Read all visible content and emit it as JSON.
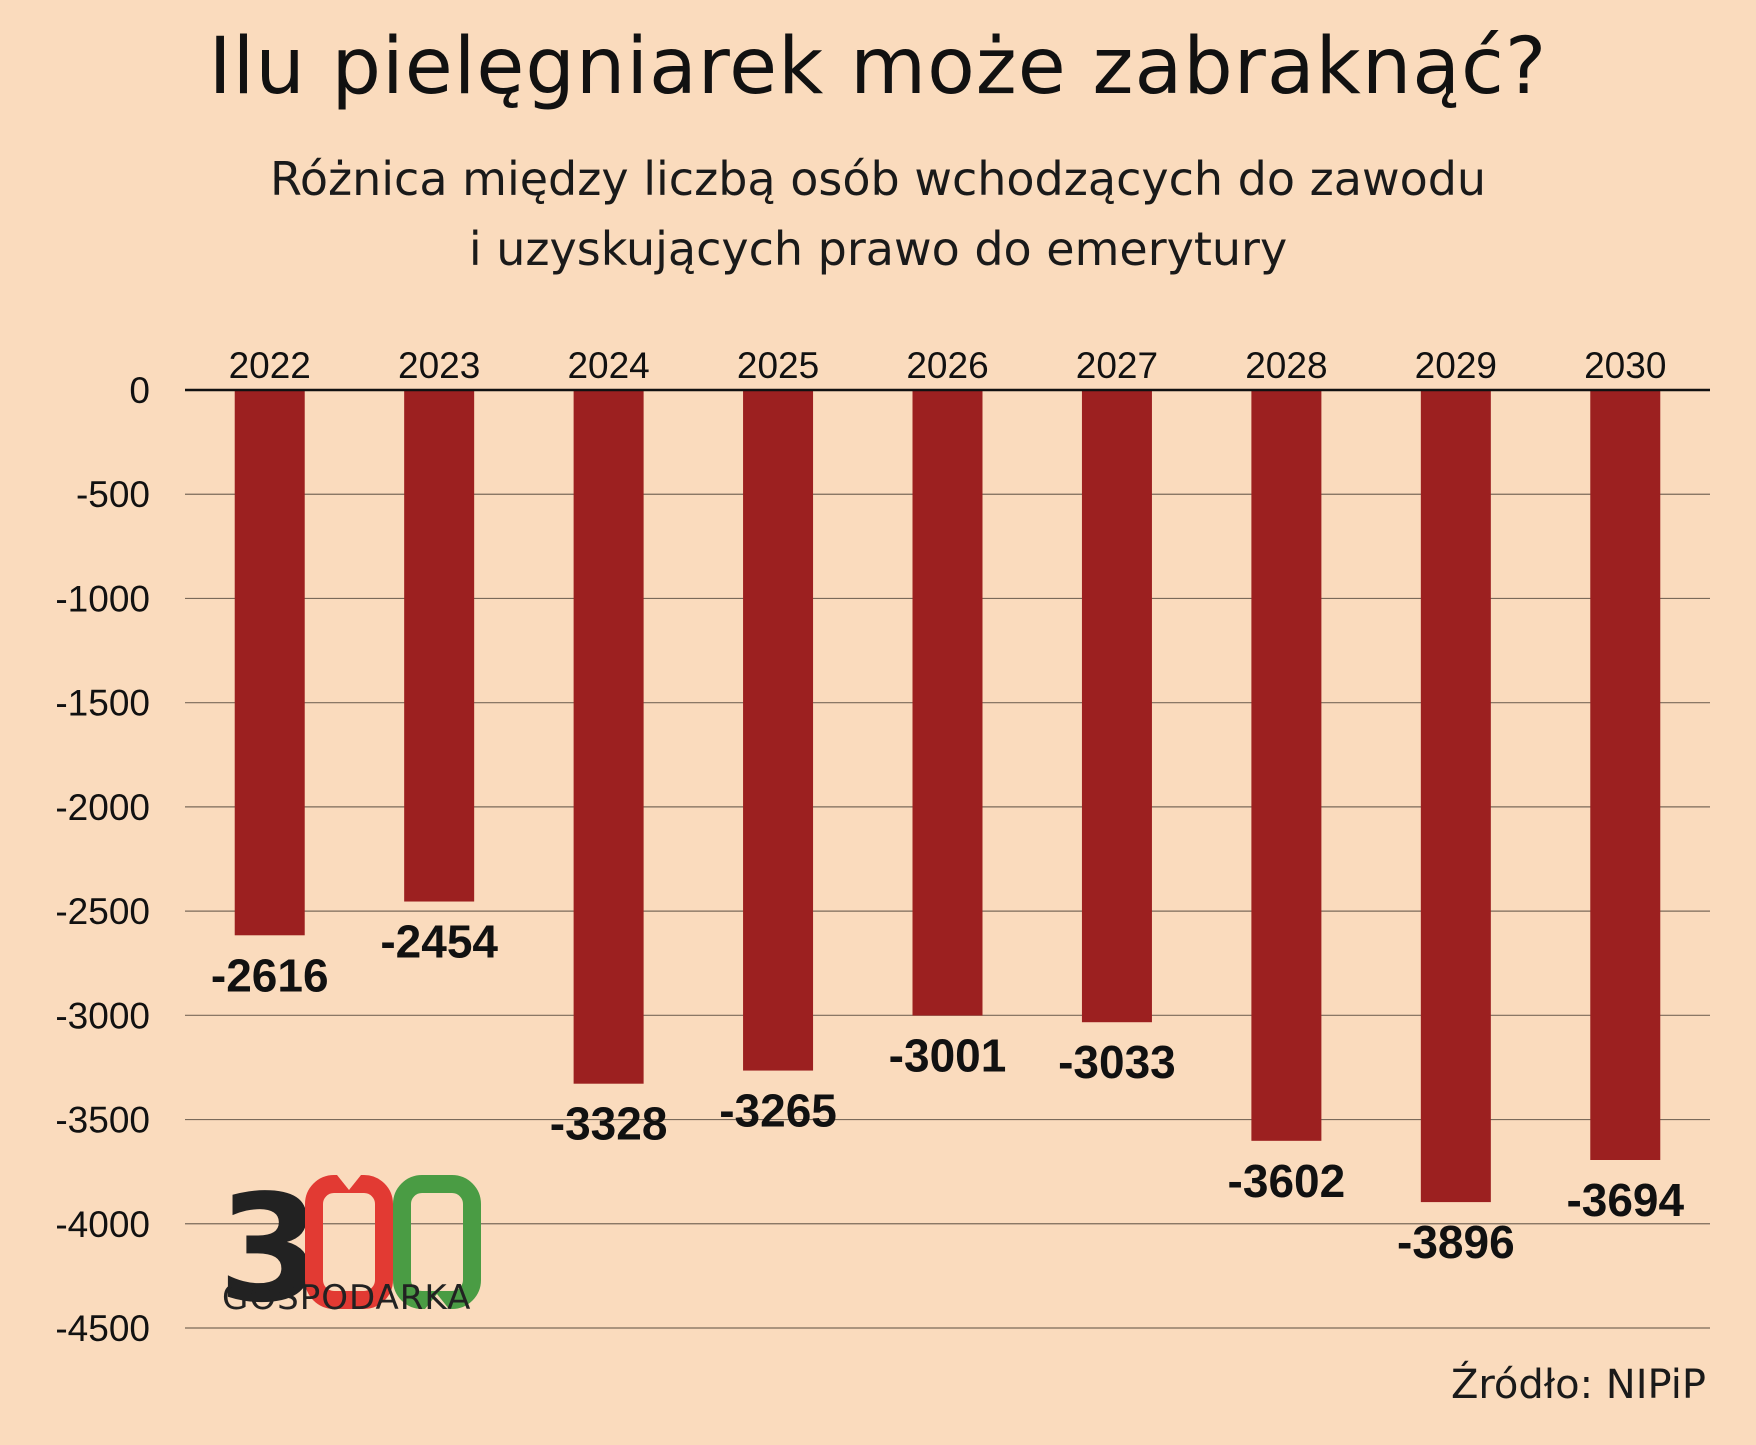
{
  "chart_data": {
    "type": "bar",
    "title": "Ilu pielęgniarek może zabraknąć?",
    "subtitle": [
      "Różnica między liczbą osób wchodzących do zawodu",
      "i uzyskujących prawo do emerytury"
    ],
    "categories": [
      "2022",
      "2023",
      "2024",
      "2025",
      "2026",
      "2027",
      "2028",
      "2029",
      "2030"
    ],
    "values": [
      -2616,
      -2454,
      -3328,
      -3265,
      -3001,
      -3033,
      -3602,
      -3896,
      -3694
    ],
    "value_labels": [
      "-2616",
      "-2454",
      "-3328",
      "-3265",
      "-3001",
      "-3033",
      "-3602",
      "-3896",
      "-3694"
    ],
    "yticks": [
      0,
      -500,
      -1000,
      -1500,
      -2000,
      -2500,
      -3000,
      -3500,
      -4000,
      -4500
    ],
    "ytick_labels": [
      "0",
      "-500",
      "-1000",
      "-1500",
      "-2000",
      "-2500",
      "-3000",
      "-3500",
      "-4000",
      "-4500"
    ],
    "ylim": [
      -4500,
      0
    ],
    "xaxis_position": "top",
    "grid": true,
    "bar_color": "#9c2020",
    "source": "Źródło: NIPiP"
  },
  "logo": {
    "digit": "3",
    "text": "GOSPODARKA",
    "colors": [
      "#222222",
      "#e23a33",
      "#4a9c44"
    ]
  }
}
